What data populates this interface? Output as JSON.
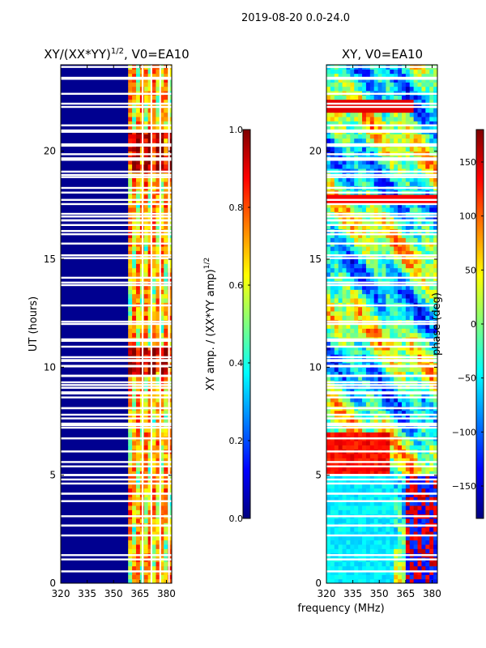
{
  "header": {
    "suptitle": "2019-08-20 0.0-24.0"
  },
  "colors": {
    "jet": [
      "#00007f",
      "#0000ff",
      "#007fff",
      "#00ffff",
      "#7fff7f",
      "#ffff00",
      "#ff7f00",
      "#ff0000",
      "#7f0000"
    ],
    "background_amp": "#000090",
    "gap": "#ffffff"
  },
  "chart_data": [
    {
      "type": "heatmap",
      "panel": "left",
      "title_main": "XY/(XX*YY)",
      "title_sup": "1/2",
      "title_suffix": ", V0=EA10",
      "xlabel": "",
      "ylabel": "UT (hours)",
      "xlim": [
        320,
        383
      ],
      "ylim": [
        0,
        24
      ],
      "xticks": [
        320,
        335,
        350,
        365,
        380
      ],
      "yticks": [
        0,
        5,
        10,
        15,
        20
      ],
      "colorbar": {
        "label_main": "XY amp. / (XX*YY amp)",
        "label_sup": "1/2",
        "range": [
          0.0,
          1.0
        ],
        "ticks": [
          "0.0",
          "0.2",
          "0.4",
          "0.6",
          "0.8",
          "1.0"
        ]
      }
    },
    {
      "type": "heatmap",
      "panel": "right",
      "title": "XY, V0=EA10",
      "xlabel": "frequency (MHz)",
      "ylabel": "",
      "xlim": [
        320,
        383
      ],
      "ylim": [
        0,
        24
      ],
      "xticks": [
        320,
        335,
        350,
        365,
        380
      ],
      "yticks": [
        0,
        5,
        10,
        15,
        20
      ],
      "colorbar": {
        "label": "phase (deg)",
        "range": [
          -180,
          180
        ],
        "ticks": [
          "−150",
          "−100",
          "−50",
          "0",
          "50",
          "100",
          "150"
        ]
      }
    }
  ]
}
